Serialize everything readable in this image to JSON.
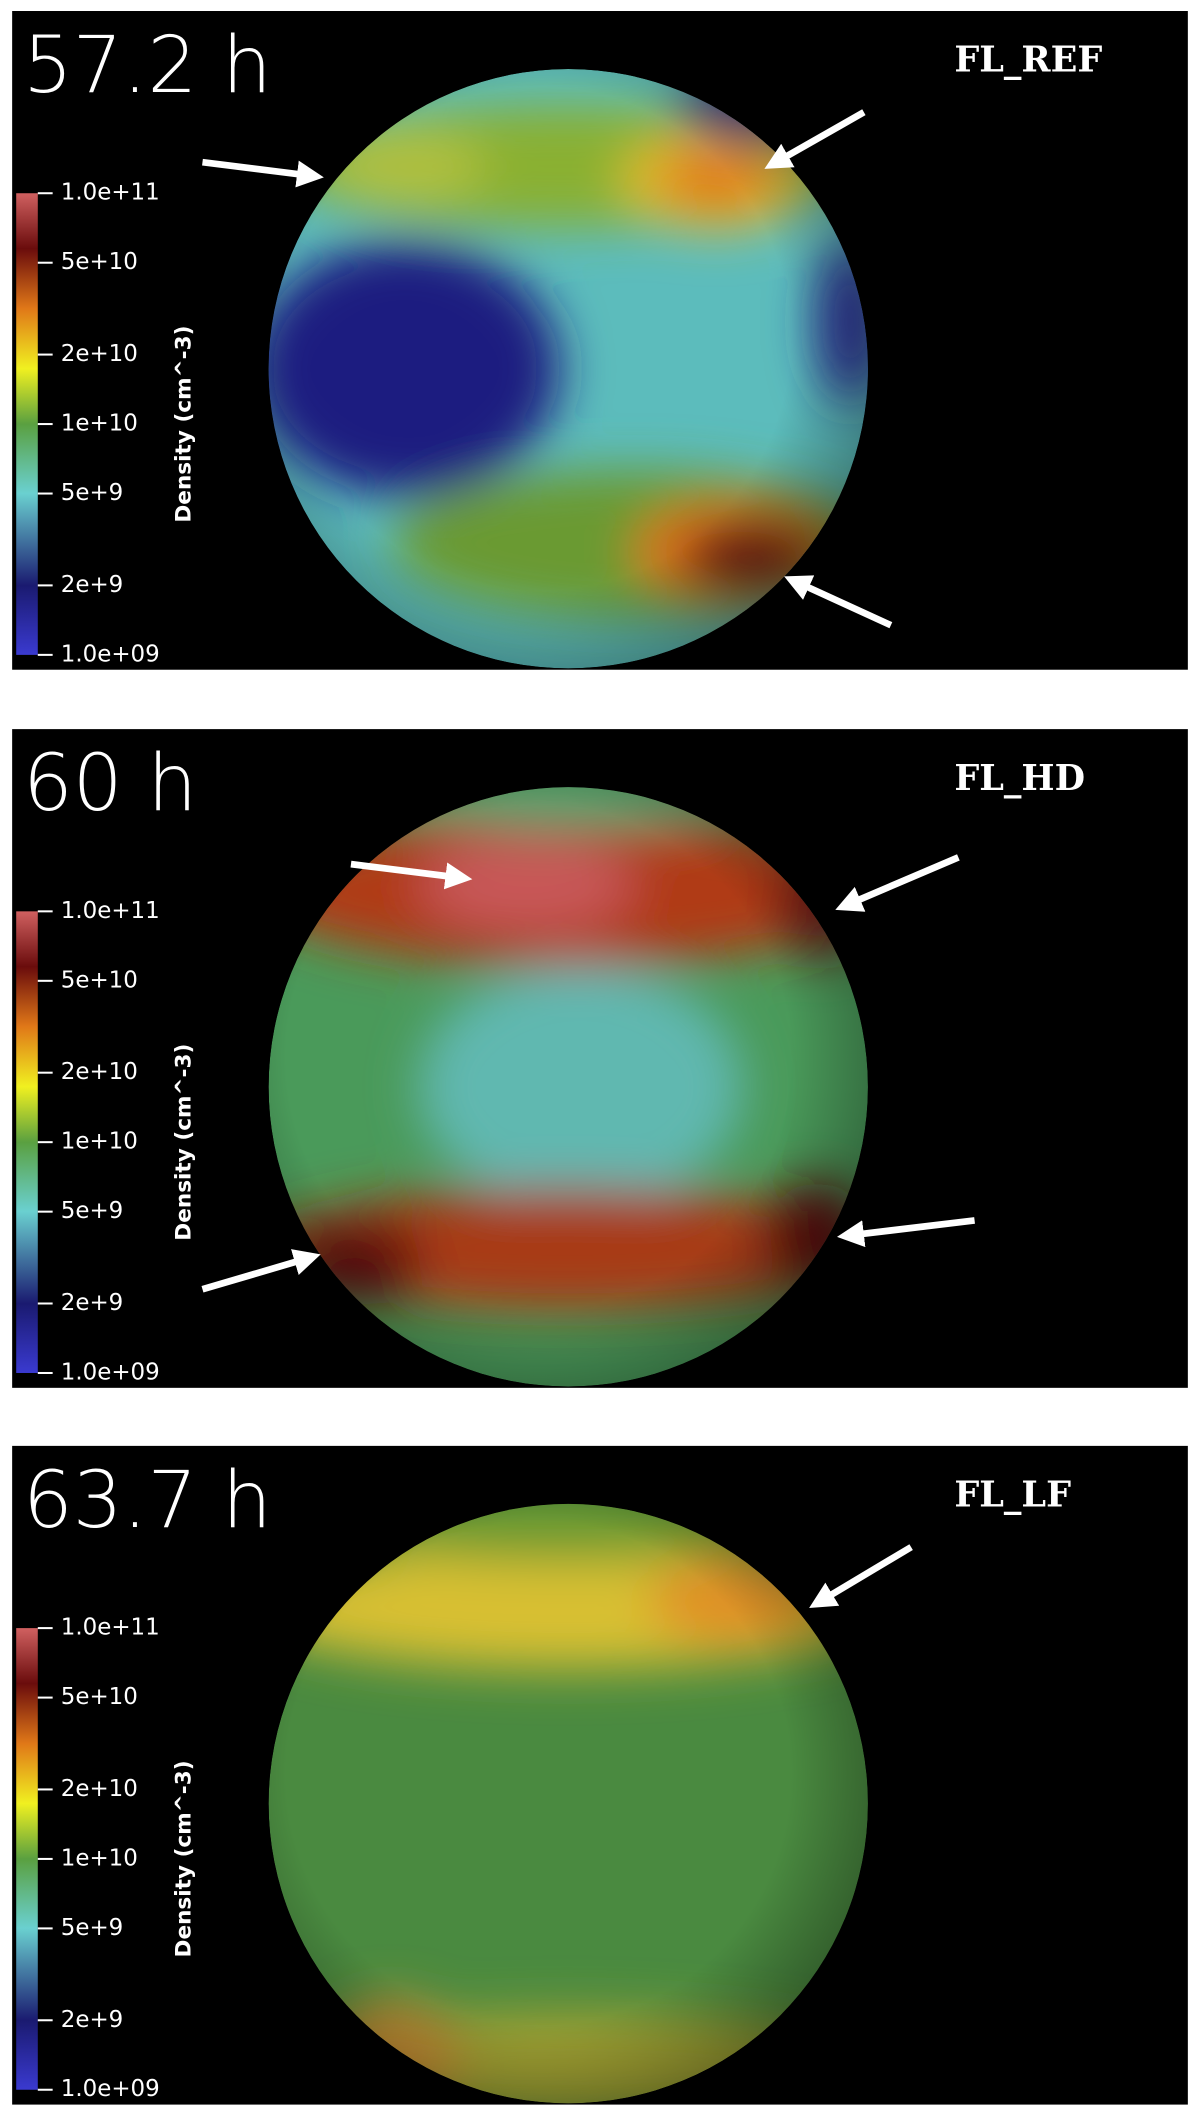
{
  "panels": [
    {
      "time": "57.2 h",
      "name": "FL_REF"
    },
    {
      "time": "60 h",
      "name": "FL_HD"
    },
    {
      "time": "63.7 h",
      "name": "FL_LF"
    }
  ],
  "colorbar": {
    "label": "Density (cm^-3)",
    "log_scale": true,
    "lim": [
      1000000000,
      100000000000
    ],
    "ticks": [
      {
        "value": 100000000000,
        "label": "1.0e+11"
      },
      {
        "value": 50000000000,
        "label": "5e+10"
      },
      {
        "value": 20000000000,
        "label": "2e+10"
      },
      {
        "value": 10000000000,
        "label": "1e+10"
      },
      {
        "value": 5000000000,
        "label": "5e+9"
      },
      {
        "value": 2000000000,
        "label": "2e+9"
      },
      {
        "value": 1000000000,
        "label": "1.0e+09"
      }
    ]
  }
}
